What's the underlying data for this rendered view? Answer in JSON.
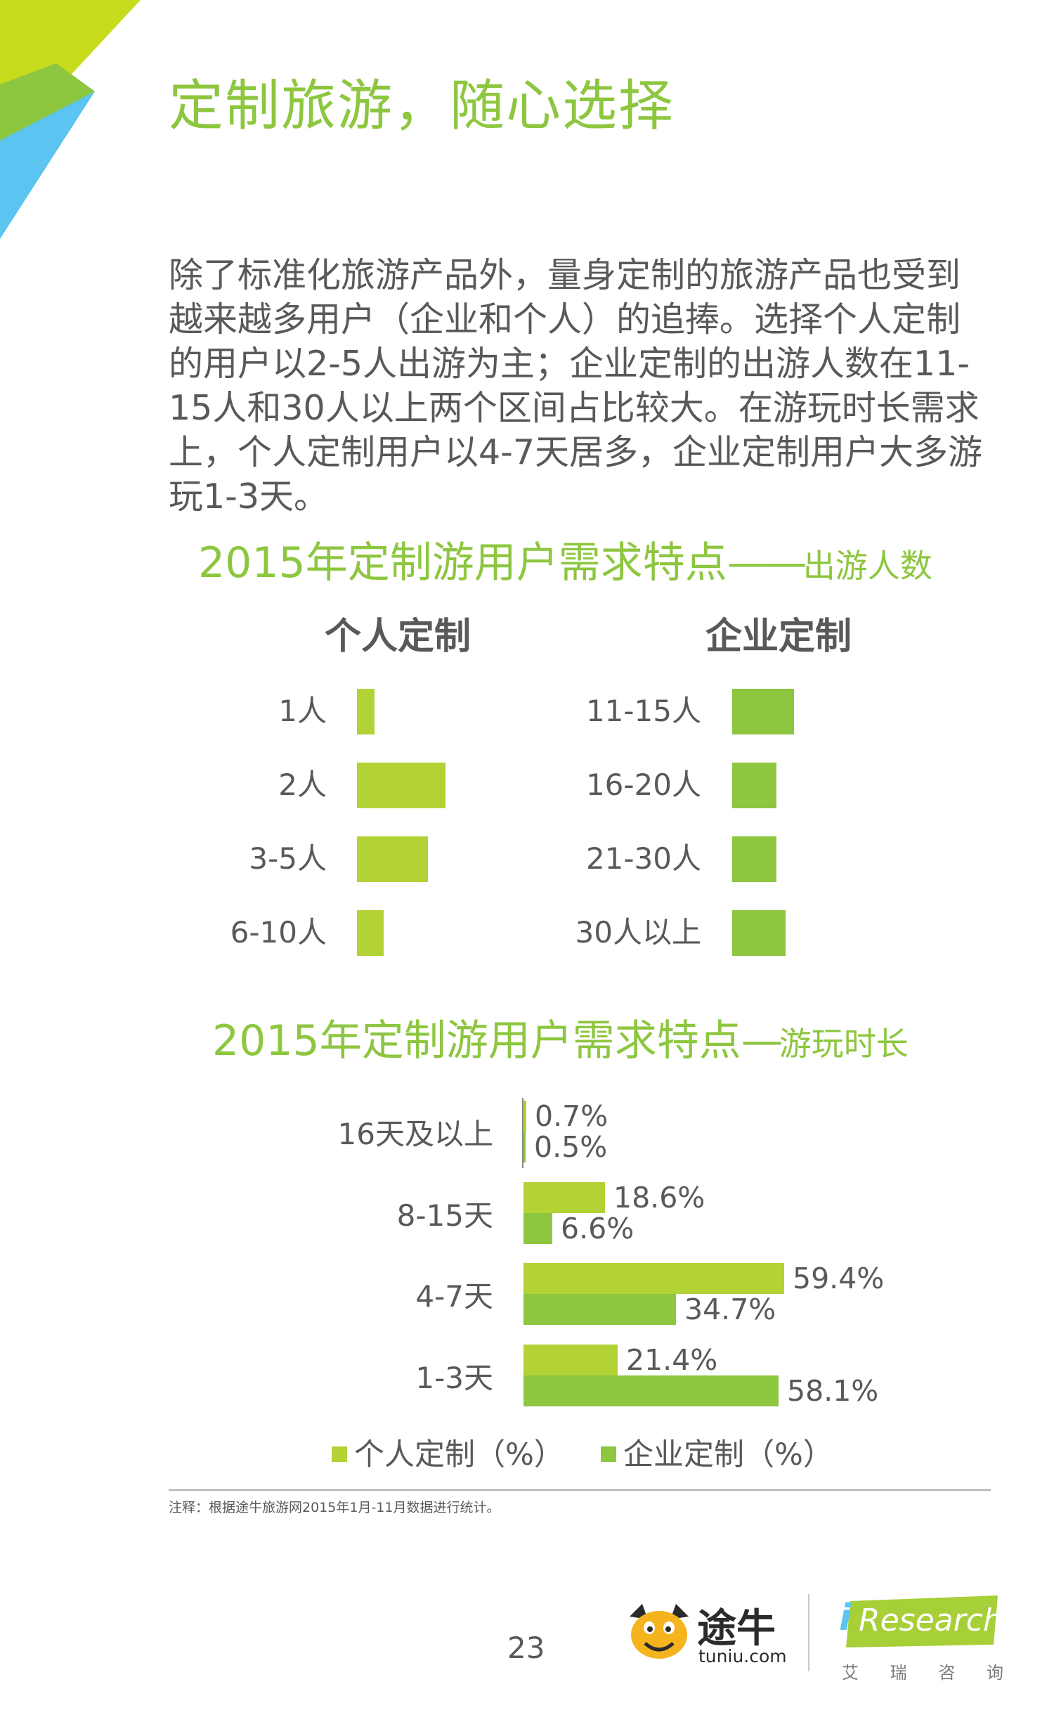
{
  "page": {
    "title": "定制旅游，随心选择",
    "intro": "除了标准化旅游产品外，量身定制的旅游产品也受到越来越多用户（企业和个人）的追捧。选择个人定制的用户以2-5人出游为主；企业定制的出游人数在11-15人和30人以上两个区间占比较大。在游玩时长需求上，个人定制用户以4-7天居多，企业定制用户大多游玩1-3天。",
    "footnote": "注释：根据途牛旅游网2015年1月-11月数据进行统计。",
    "page_number": "23"
  },
  "section1": {
    "title_main": "2015年定制游用户需求特点",
    "title_dash": "——",
    "title_sub": "出游人数",
    "left_header": "个人定制",
    "right_header": "企业定制"
  },
  "section2": {
    "title_main": "2015年定制游用户需求特点",
    "title_dash": "—",
    "title_sub": "游玩时长"
  },
  "logos": {
    "tuniu_name": "途牛",
    "tuniu_domain": "tuniu.com",
    "iresearch_i": "i",
    "iresearch_name": "Research",
    "iresearch_cn": [
      "艾",
      "瑞",
      "咨",
      "询"
    ]
  },
  "colors": {
    "accent": "#8dc63f",
    "personal": "#b2d235",
    "enterprise": "#8dc63f",
    "text": "#595959",
    "deco_yellow": "#c8dc1e",
    "deco_green": "#8dc63f",
    "deco_blue": "#5bc4f1"
  },
  "chart_data": [
    {
      "type": "bar",
      "orientation": "horizontal",
      "title": "个人定制",
      "categories": [
        "1人",
        "2人",
        "3-5人",
        "6-10人"
      ],
      "values": [
        2,
        10,
        8,
        3
      ],
      "unit": "relative share (no values printed)"
    },
    {
      "type": "bar",
      "orientation": "horizontal",
      "title": "企业定制",
      "categories": [
        "11-15人",
        "16-20人",
        "21-30人",
        "30人以上"
      ],
      "values": [
        7,
        5,
        5,
        6
      ],
      "unit": "relative share (no values printed)"
    },
    {
      "type": "bar",
      "orientation": "horizontal",
      "title": "2015年定制游用户需求特点—游玩时长",
      "categories": [
        "16天及以上",
        "8-15天",
        "4-7天",
        "1-3天"
      ],
      "series": [
        {
          "name": "个人定制（%）",
          "values": [
            0.7,
            18.6,
            59.4,
            21.4
          ],
          "labels": [
            "0.7%",
            "18.6%",
            "59.4%",
            "21.4%"
          ]
        },
        {
          "name": "企业定制（%）",
          "values": [
            0.5,
            6.6,
            34.7,
            58.1
          ],
          "labels": [
            "0.5%",
            "6.6%",
            "34.7%",
            "58.1%"
          ]
        }
      ],
      "xlim": [
        0,
        60
      ],
      "legend": "bottom"
    }
  ]
}
